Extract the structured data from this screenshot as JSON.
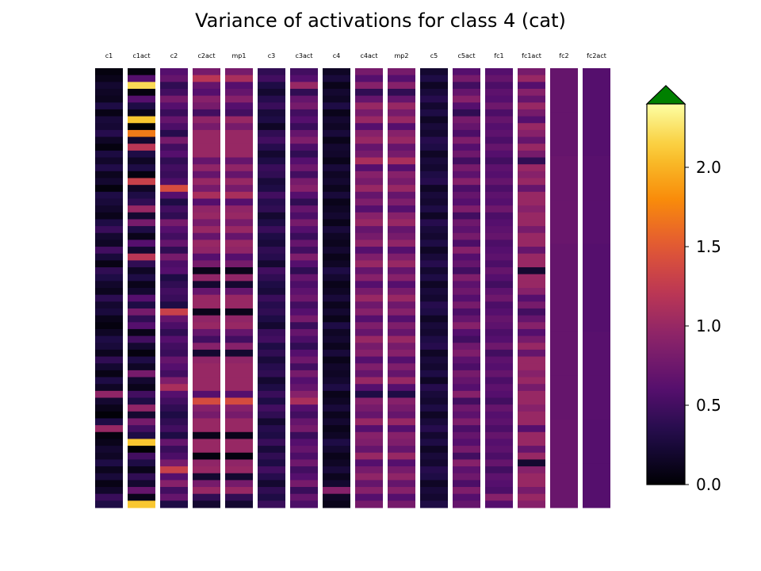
{
  "chart_data": {
    "type": "heatmap",
    "title": "Variance of activations for class 4 (cat)",
    "columns": [
      {
        "label": "c1",
        "values": [
          0.05,
          0.1,
          0.2,
          0.15,
          0.12,
          0.3,
          0.08,
          0.25,
          0.22,
          0.35,
          0.15,
          0.05,
          0.28,
          0.18,
          0.32,
          0.12,
          0.2,
          0.04,
          0.3,
          0.25,
          0.18,
          0.1,
          0.3,
          0.45,
          0.2,
          0.15,
          0.5,
          0.25,
          0.08,
          0.4,
          0.3,
          0.18,
          0.12,
          0.38,
          0.2,
          0.26,
          0.1,
          0.05,
          0.15,
          0.3,
          0.25,
          0.12,
          0.4,
          0.2,
          0.08,
          0.3,
          0.15,
          0.95,
          0.2,
          0.1,
          0.02,
          0.3,
          1.0,
          0.05,
          0.1,
          0.2,
          0.15,
          0.3,
          0.12,
          0.25,
          0.08,
          0.18,
          0.45,
          0.3
        ]
      },
      {
        "label": "c1act",
        "values": [
          0.05,
          0.6,
          2.2,
          0.05,
          0.6,
          0.3,
          0.1,
          2.1,
          0.0,
          1.7,
          0.2,
          1.2,
          0.3,
          0.15,
          0.3,
          0.05,
          1.3,
          0.15,
          0.3,
          0.4,
          1.0,
          0.2,
          0.8,
          0.3,
          0.1,
          0.6,
          0.2,
          1.2,
          0.4,
          0.15,
          0.3,
          0.1,
          0.2,
          0.6,
          0.3,
          0.8,
          0.4,
          0.6,
          0.1,
          0.5,
          0.2,
          0.05,
          0.3,
          0.15,
          0.8,
          0.2,
          0.1,
          0.5,
          0.3,
          0.95,
          0.2,
          0.8,
          0.5,
          0.3,
          2.1,
          0.0,
          0.5,
          0.3,
          0.1,
          0.4,
          0.2,
          0.7,
          0.1,
          2.1
        ]
      },
      {
        "label": "c2",
        "values": [
          0.6,
          0.7,
          0.4,
          0.5,
          0.8,
          0.6,
          0.45,
          0.7,
          0.55,
          0.35,
          0.8,
          0.5,
          0.6,
          0.4,
          0.5,
          0.45,
          0.55,
          1.4,
          0.6,
          0.3,
          0.5,
          0.4,
          0.8,
          0.6,
          0.5,
          0.7,
          0.4,
          0.8,
          0.55,
          0.6,
          0.3,
          0.4,
          0.5,
          0.45,
          0.3,
          1.3,
          0.7,
          0.55,
          0.4,
          0.6,
          0.5,
          0.45,
          0.7,
          0.6,
          0.5,
          0.85,
          1.1,
          0.6,
          0.5,
          0.4,
          0.3,
          0.4,
          0.5,
          0.3,
          0.7,
          0.45,
          0.55,
          0.8,
          1.3,
          0.6,
          0.9,
          0.5,
          0.7,
          0.3
        ]
      },
      {
        "label": "c2act",
        "values": [
          0.8,
          1.2,
          0.7,
          0.6,
          0.9,
          0.8,
          0.5,
          0.95,
          0.8,
          1.0,
          1.0,
          1.0,
          1.0,
          0.7,
          0.95,
          0.7,
          1.0,
          0.8,
          1.1,
          0.6,
          0.95,
          1.0,
          0.8,
          1.0,
          0.7,
          1.0,
          0.95,
          0.6,
          0.8,
          0.1,
          0.95,
          0.2,
          0.7,
          1.0,
          1.0,
          0.1,
          0.95,
          1.0,
          0.7,
          0.5,
          0.9,
          0.2,
          0.95,
          1.0,
          1.0,
          1.0,
          1.0,
          0.6,
          1.4,
          0.9,
          0.8,
          1.0,
          1.0,
          0.1,
          1.0,
          1.0,
          0.05,
          0.95,
          1.0,
          0.2,
          0.8,
          1.0,
          0.4,
          0.2
        ]
      },
      {
        "label": "mp1",
        "values": [
          0.8,
          1.1,
          0.6,
          0.7,
          0.9,
          0.6,
          0.5,
          1.0,
          0.8,
          1.0,
          1.0,
          1.0,
          1.0,
          0.7,
          0.95,
          0.7,
          1.0,
          0.8,
          1.1,
          0.6,
          0.95,
          1.0,
          0.8,
          1.0,
          0.7,
          1.0,
          0.95,
          0.6,
          0.8,
          0.1,
          0.95,
          0.2,
          0.7,
          1.0,
          1.0,
          0.1,
          0.95,
          1.0,
          0.7,
          0.5,
          0.9,
          0.2,
          0.95,
          1.0,
          1.0,
          1.0,
          1.0,
          0.6,
          1.4,
          0.9,
          0.8,
          1.0,
          1.0,
          0.1,
          1.0,
          1.0,
          0.05,
          0.95,
          1.0,
          0.2,
          0.8,
          1.0,
          0.4,
          0.2
        ]
      },
      {
        "label": "c3",
        "values": [
          0.4,
          0.5,
          0.3,
          0.2,
          0.35,
          0.45,
          0.25,
          0.3,
          0.15,
          0.4,
          0.5,
          0.35,
          0.2,
          0.3,
          0.45,
          0.4,
          0.25,
          0.3,
          0.5,
          0.35,
          0.4,
          0.2,
          0.3,
          0.45,
          0.3,
          0.25,
          0.4,
          0.35,
          0.2,
          0.5,
          0.4,
          0.3,
          0.25,
          0.45,
          0.35,
          0.4,
          0.3,
          0.2,
          0.45,
          0.5,
          0.3,
          0.4,
          0.25,
          0.35,
          0.4,
          0.2,
          0.3,
          0.45,
          0.3,
          0.5,
          0.4,
          0.2,
          0.35,
          0.3,
          0.45,
          0.25,
          0.4,
          0.3,
          0.5,
          0.35,
          0.2,
          0.4,
          0.3,
          0.45
        ]
      },
      {
        "label": "c3act",
        "values": [
          0.5,
          0.6,
          1.0,
          0.4,
          0.7,
          0.8,
          0.5,
          0.6,
          0.45,
          0.7,
          0.85,
          0.55,
          0.4,
          0.6,
          0.75,
          0.5,
          0.8,
          0.9,
          0.6,
          0.4,
          0.7,
          0.55,
          0.8,
          0.6,
          0.45,
          0.7,
          0.5,
          0.85,
          0.6,
          0.4,
          0.7,
          0.55,
          0.65,
          0.75,
          0.5,
          0.6,
          0.8,
          0.45,
          0.7,
          0.55,
          0.4,
          0.6,
          0.75,
          0.5,
          0.8,
          0.6,
          0.7,
          0.9,
          1.1,
          0.6,
          0.5,
          0.7,
          0.8,
          0.45,
          0.6,
          0.7,
          0.55,
          0.75,
          0.5,
          0.6,
          0.8,
          0.45,
          0.7,
          0.55
        ]
      },
      {
        "label": "c4",
        "values": [
          0.15,
          0.25,
          0.1,
          0.2,
          0.15,
          0.3,
          0.1,
          0.2,
          0.15,
          0.25,
          0.1,
          0.2,
          0.18,
          0.1,
          0.25,
          0.15,
          0.2,
          0.12,
          0.25,
          0.1,
          0.15,
          0.2,
          0.1,
          0.25,
          0.15,
          0.12,
          0.2,
          0.1,
          0.15,
          0.3,
          0.2,
          0.1,
          0.15,
          0.25,
          0.12,
          0.2,
          0.1,
          0.3,
          0.15,
          0.2,
          0.12,
          0.25,
          0.1,
          0.18,
          0.15,
          0.2,
          0.3,
          0.1,
          0.15,
          0.25,
          0.12,
          0.2,
          0.1,
          0.15,
          0.3,
          0.2,
          0.1,
          0.15,
          0.25,
          0.12,
          0.2,
          0.9,
          0.15,
          0.1
        ]
      },
      {
        "label": "c4act",
        "values": [
          0.8,
          0.6,
          0.9,
          0.4,
          0.7,
          1.0,
          0.8,
          1.0,
          0.6,
          0.9,
          1.0,
          0.7,
          0.8,
          1.1,
          0.6,
          0.9,
          0.8,
          1.0,
          0.7,
          0.85,
          0.6,
          0.9,
          1.0,
          0.7,
          0.8,
          0.95,
          0.6,
          0.85,
          1.0,
          0.7,
          0.9,
          0.6,
          0.8,
          1.0,
          0.75,
          0.9,
          0.6,
          0.85,
          0.7,
          1.0,
          0.8,
          0.9,
          0.6,
          0.85,
          0.7,
          1.0,
          0.6,
          0.3,
          0.9,
          0.8,
          0.7,
          1.0,
          0.6,
          0.9,
          0.85,
          0.7,
          1.0,
          0.6,
          0.8,
          0.95,
          0.7,
          0.9,
          0.6,
          0.8
        ]
      },
      {
        "label": "mp2",
        "values": [
          0.8,
          0.6,
          0.9,
          0.4,
          0.7,
          1.0,
          0.8,
          1.0,
          0.6,
          0.9,
          1.0,
          0.7,
          0.8,
          1.1,
          0.6,
          0.9,
          0.8,
          1.0,
          0.7,
          0.85,
          0.6,
          0.9,
          1.0,
          0.7,
          0.8,
          0.95,
          0.6,
          0.85,
          1.0,
          0.7,
          0.9,
          0.6,
          0.8,
          1.0,
          0.75,
          0.9,
          0.6,
          0.85,
          0.7,
          1.0,
          0.8,
          0.9,
          0.6,
          0.85,
          0.7,
          1.0,
          0.6,
          0.3,
          0.9,
          0.8,
          0.7,
          1.0,
          0.6,
          0.9,
          0.85,
          0.7,
          1.0,
          0.6,
          0.8,
          0.95,
          0.7,
          0.9,
          0.6,
          0.8
        ]
      },
      {
        "label": "c5",
        "values": [
          0.2,
          0.3,
          0.15,
          0.25,
          0.35,
          0.2,
          0.3,
          0.15,
          0.25,
          0.2,
          0.35,
          0.3,
          0.15,
          0.25,
          0.2,
          0.3,
          0.35,
          0.15,
          0.25,
          0.2,
          0.3,
          0.15,
          0.35,
          0.25,
          0.2,
          0.3,
          0.15,
          0.25,
          0.35,
          0.2,
          0.3,
          0.15,
          0.25,
          0.2,
          0.35,
          0.3,
          0.15,
          0.25,
          0.2,
          0.3,
          0.35,
          0.15,
          0.25,
          0.2,
          0.3,
          0.15,
          0.35,
          0.25,
          0.2,
          0.3,
          0.15,
          0.25,
          0.35,
          0.2,
          0.3,
          0.15,
          0.25,
          0.2,
          0.35,
          0.3,
          0.15,
          0.25,
          0.2,
          0.3
        ]
      },
      {
        "label": "c5act",
        "values": [
          0.6,
          0.8,
          0.5,
          0.7,
          0.9,
          0.6,
          0.4,
          0.8,
          0.7,
          0.55,
          0.85,
          0.6,
          0.75,
          0.5,
          0.8,
          0.65,
          0.9,
          0.55,
          0.7,
          0.6,
          0.85,
          0.5,
          0.75,
          0.65,
          0.8,
          0.55,
          0.9,
          0.6,
          0.7,
          0.5,
          0.85,
          0.65,
          0.75,
          0.6,
          0.8,
          0.55,
          0.7,
          0.9,
          0.6,
          0.5,
          0.75,
          0.85,
          0.65,
          0.55,
          0.8,
          0.7,
          0.6,
          0.9,
          0.5,
          0.75,
          0.65,
          0.85,
          0.55,
          0.7,
          0.6,
          0.8,
          0.5,
          0.9,
          0.65,
          0.75,
          0.55,
          0.85,
          0.6,
          0.7
        ]
      },
      {
        "label": "fc1",
        "values": [
          0.6,
          0.7,
          0.55,
          0.65,
          0.6,
          0.75,
          0.55,
          0.7,
          0.6,
          0.65,
          0.55,
          0.7,
          0.6,
          0.5,
          0.65,
          0.6,
          0.7,
          0.55,
          0.65,
          0.6,
          0.75,
          0.55,
          0.6,
          0.65,
          0.7,
          0.55,
          0.6,
          0.65,
          0.55,
          0.7,
          0.6,
          0.5,
          0.65,
          0.75,
          0.55,
          0.6,
          0.7,
          0.65,
          0.55,
          0.6,
          0.75,
          0.5,
          0.65,
          0.6,
          0.7,
          0.55,
          0.65,
          0.6,
          0.5,
          0.7,
          0.6,
          0.65,
          0.55,
          0.7,
          0.6,
          0.65,
          0.55,
          0.7,
          0.5,
          0.65,
          0.6,
          0.55,
          0.9,
          0.6
        ]
      },
      {
        "label": "fc1act",
        "values": [
          0.8,
          1.0,
          0.6,
          0.9,
          0.7,
          1.0,
          0.8,
          0.6,
          1.0,
          0.9,
          0.7,
          1.0,
          0.8,
          0.4,
          1.0,
          0.9,
          1.0,
          0.7,
          1.0,
          1.0,
          0.9,
          1.0,
          1.0,
          0.8,
          1.0,
          1.0,
          0.7,
          1.0,
          1.0,
          0.2,
          1.0,
          1.0,
          0.9,
          0.6,
          0.8,
          0.5,
          0.7,
          0.9,
          0.6,
          0.8,
          1.0,
          0.7,
          1.0,
          1.0,
          0.9,
          1.0,
          0.8,
          1.0,
          1.0,
          0.9,
          1.0,
          1.0,
          0.6,
          1.0,
          1.0,
          0.7,
          1.0,
          0.2,
          0.9,
          1.0,
          1.0,
          0.8,
          1.0,
          0.9
        ]
      },
      {
        "label": "fc2",
        "values": [
          0.7,
          0.7,
          0.72,
          0.72,
          0.7,
          0.7,
          0.7,
          0.7,
          0.72,
          0.72
        ]
      },
      {
        "label": "fc2act",
        "values": [
          0.6,
          0.6,
          0.62,
          0.62,
          0.6,
          0.6,
          0.62,
          0.62,
          0.6,
          0.6
        ]
      }
    ],
    "colormap": "inferno",
    "colorbar": {
      "vmin": 0.0,
      "vmax": 2.4,
      "ticks": [
        0.0,
        0.5,
        1.0,
        1.5,
        2.0
      ],
      "tick_labels": [
        "0.0",
        "0.5",
        "1.0",
        "1.5",
        "2.0"
      ],
      "extend": "max",
      "extend_color": "#008000"
    }
  }
}
